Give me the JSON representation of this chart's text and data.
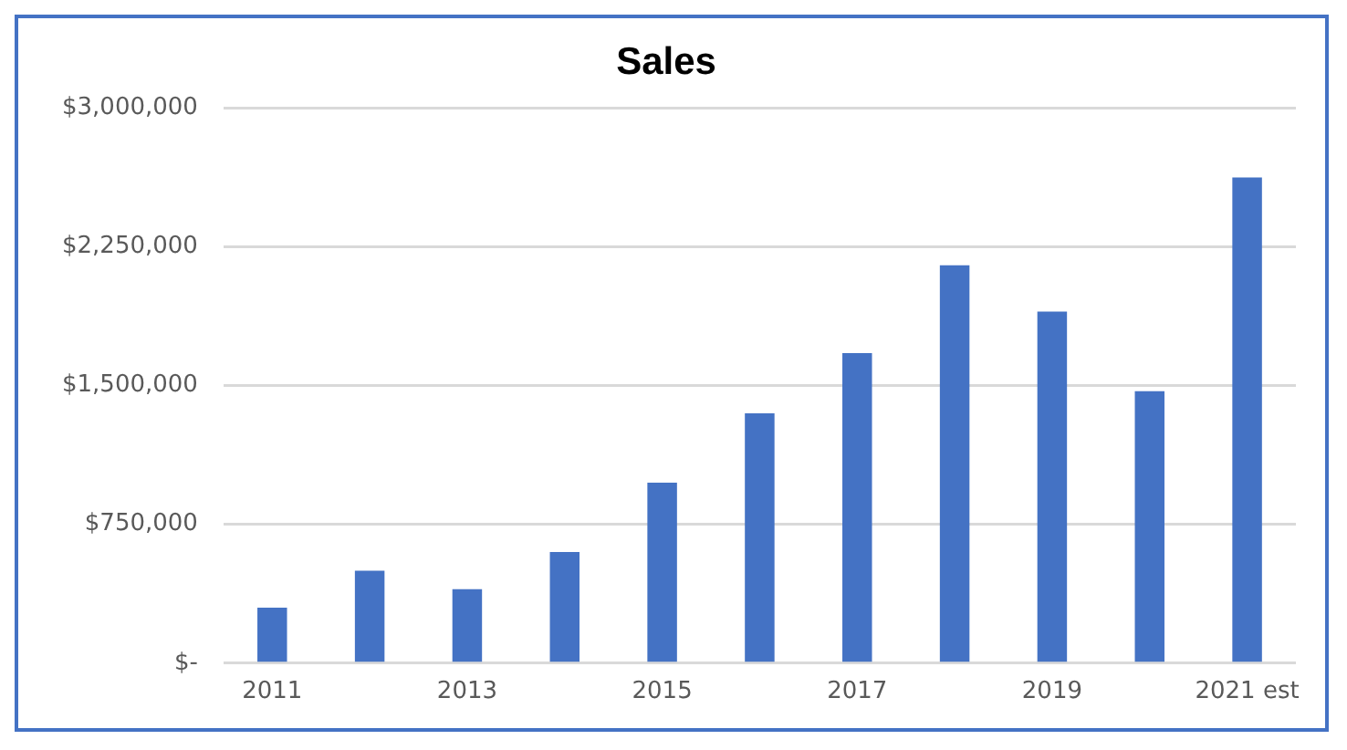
{
  "chart_data": {
    "type": "bar",
    "title": "Sales",
    "categories": [
      "2011",
      null,
      "2013",
      null,
      "2015",
      null,
      "2017",
      null,
      "2019",
      null,
      "2021 est"
    ],
    "values": [
      300000,
      500000,
      400000,
      600000,
      975000,
      1350000,
      1675000,
      2150000,
      1900000,
      1470000,
      2625000
    ],
    "color": "#4472c4",
    "ylim": [
      0,
      3000000
    ],
    "yticks": [
      {
        "value": 0,
        "label": "$-"
      },
      {
        "value": 750000,
        "label": "$750,000"
      },
      {
        "value": 1500000,
        "label": "$1,500,000"
      },
      {
        "value": 2250000,
        "label": "$2,250,000"
      },
      {
        "value": 3000000,
        "label": "$3,000,000"
      }
    ],
    "grid": "y"
  }
}
